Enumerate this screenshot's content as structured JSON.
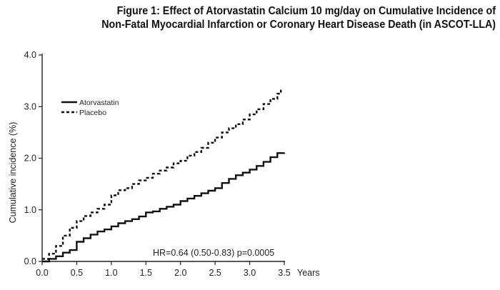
{
  "chart_data": {
    "type": "line",
    "title_line1": "Figure 1: Effect of Atorvastatin Calcium 10 mg/day on Cumulative Incidence of",
    "title_line2": "Non-Fatal Myocardial Infarction or Coronary Heart Disease Death (in ASCOT-LLA)",
    "xlabel": "Years",
    "ylabel": "Cumulative incidence (%)",
    "xlim": [
      0.0,
      3.5
    ],
    "ylim": [
      0.0,
      4.0
    ],
    "x_ticks": [
      "0.0",
      "0.5",
      "1.0",
      "1.5",
      "2.0",
      "2.5",
      "3.0",
      "3.5"
    ],
    "y_ticks": [
      "0.0",
      "1.0",
      "2.0",
      "3.0",
      "4.0"
    ],
    "legend_position": "upper-left",
    "annotation": "HR=0.64 (0.50-0.83)  p=0.0005",
    "series": [
      {
        "name": "Atorvastatin",
        "style": "solid",
        "color": "#111111",
        "x": [
          0.0,
          0.1,
          0.2,
          0.3,
          0.4,
          0.5,
          0.6,
          0.7,
          0.8,
          0.9,
          1.0,
          1.1,
          1.2,
          1.3,
          1.4,
          1.5,
          1.6,
          1.7,
          1.8,
          1.9,
          2.0,
          2.1,
          2.2,
          2.3,
          2.4,
          2.5,
          2.6,
          2.7,
          2.8,
          2.9,
          3.0,
          3.1,
          3.2,
          3.3,
          3.4,
          3.5
        ],
        "y": [
          0.0,
          0.05,
          0.1,
          0.17,
          0.22,
          0.38,
          0.45,
          0.52,
          0.58,
          0.62,
          0.68,
          0.74,
          0.78,
          0.82,
          0.87,
          0.95,
          0.97,
          1.02,
          1.06,
          1.1,
          1.17,
          1.22,
          1.27,
          1.32,
          1.37,
          1.42,
          1.52,
          1.6,
          1.67,
          1.72,
          1.78,
          1.85,
          1.93,
          2.02,
          2.1,
          2.11
        ]
      },
      {
        "name": "Placebo",
        "style": "dashed",
        "color": "#111111",
        "x": [
          0.0,
          0.1,
          0.2,
          0.3,
          0.4,
          0.5,
          0.6,
          0.7,
          0.8,
          0.9,
          1.0,
          1.1,
          1.2,
          1.3,
          1.4,
          1.5,
          1.6,
          1.7,
          1.8,
          1.9,
          2.0,
          2.1,
          2.2,
          2.3,
          2.4,
          2.5,
          2.6,
          2.7,
          2.8,
          2.9,
          3.0,
          3.1,
          3.2,
          3.3,
          3.4,
          3.45
        ],
        "y": [
          0.05,
          0.15,
          0.3,
          0.5,
          0.65,
          0.78,
          0.88,
          0.95,
          1.02,
          1.1,
          1.28,
          1.38,
          1.42,
          1.5,
          1.57,
          1.62,
          1.7,
          1.76,
          1.82,
          1.9,
          1.95,
          2.05,
          2.12,
          2.2,
          2.3,
          2.4,
          2.5,
          2.58,
          2.66,
          2.75,
          2.85,
          2.95,
          3.05,
          3.15,
          3.25,
          3.35
        ]
      }
    ]
  }
}
